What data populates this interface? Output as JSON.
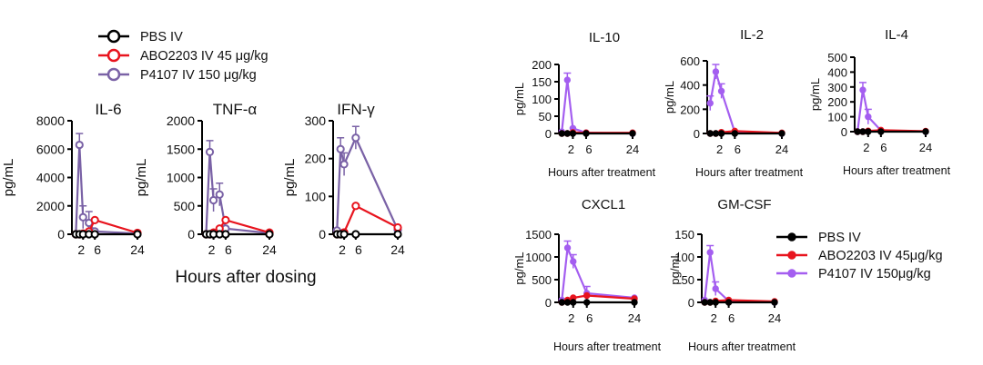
{
  "colors": {
    "pbs": "#000000",
    "abo": "#e8141e",
    "p4107": "#7a62a6",
    "p4107_b": "#a45ef0"
  },
  "figure_a": {
    "legend": [
      {
        "label": "PBS IV",
        "color": "pbs"
      },
      {
        "label": "ABO2203 IV 45 μg/kg",
        "color": "abo"
      },
      {
        "label": "P4107 IV 150 μg/kg",
        "color": "p4107"
      }
    ],
    "xlabel": "Hours after dosing"
  },
  "figure_b": {
    "legend": [
      {
        "label": "PBS IV",
        "color": "pbs"
      },
      {
        "label": "ABO2203 IV 45μg/kg",
        "color": "abo"
      },
      {
        "label": "P4107 IV 150μg/kg",
        "color": "p4107_b"
      }
    ]
  },
  "chart_data": [
    {
      "type": "line",
      "title": "IL-6",
      "ylabel": "pg/mL",
      "xlabel": "",
      "ylim": [
        0,
        8000
      ],
      "yticks": [
        "0",
        "2000",
        "4000",
        "6000",
        "8000"
      ],
      "xticks": [
        "2",
        "6",
        "24"
      ],
      "x": [
        0,
        1,
        2,
        4,
        6,
        24
      ],
      "series": [
        {
          "name": "PBS IV",
          "values": [
            0,
            0,
            0,
            0,
            0,
            0
          ]
        },
        {
          "name": "ABO2203 IV 45 μg/kg",
          "values": [
            0,
            0,
            50,
            200,
            1000,
            100
          ]
        },
        {
          "name": "P4107 IV 150 μg/kg",
          "values": [
            0,
            6300,
            1200,
            800,
            200,
            50
          ]
        }
      ]
    },
    {
      "type": "line",
      "title": "TNF-α",
      "ylabel": "pg/mL",
      "xlabel": "",
      "ylim": [
        0,
        2000
      ],
      "yticks": [
        "0",
        "500",
        "1000",
        "1500",
        "2000"
      ],
      "xticks": [
        "2",
        "6",
        "24"
      ],
      "x": [
        0,
        1,
        2,
        4,
        6,
        24
      ],
      "series": [
        {
          "name": "PBS IV",
          "values": [
            0,
            0,
            0,
            0,
            0,
            0
          ]
        },
        {
          "name": "ABO2203 IV 45 μg/kg",
          "values": [
            0,
            0,
            30,
            100,
            250,
            30
          ]
        },
        {
          "name": "P4107 IV 150 μg/kg",
          "values": [
            0,
            1450,
            600,
            700,
            100,
            20
          ]
        }
      ]
    },
    {
      "type": "line",
      "title": "IFN-γ",
      "ylabel": "pg/mL",
      "xlabel": "",
      "ylim": [
        0,
        300
      ],
      "yticks": [
        "0",
        "100",
        "200",
        "300"
      ],
      "xticks": [
        "2",
        "6",
        "24"
      ],
      "x": [
        0,
        1,
        2,
        6,
        24
      ],
      "series": [
        {
          "name": "PBS IV",
          "values": [
            0,
            0,
            0,
            0,
            0
          ]
        },
        {
          "name": "ABO2203 IV 45 μg/kg",
          "values": [
            0,
            0,
            5,
            75,
            18
          ]
        },
        {
          "name": "P4107 IV 150 μg/kg",
          "values": [
            10,
            225,
            185,
            255,
            12
          ]
        }
      ]
    },
    {
      "type": "line",
      "title": "IL-10",
      "ylabel": "pg/mL",
      "xlabel": "Hours after treatment",
      "ylim": [
        0,
        200
      ],
      "yticks": [
        "0",
        "50",
        "100",
        "150",
        "200"
      ],
      "xticks": [
        "2",
        "6",
        "24"
      ],
      "x": [
        0,
        1,
        2,
        6,
        24
      ],
      "series": [
        {
          "name": "PBS IV",
          "values": [
            0,
            0,
            0,
            0,
            0
          ]
        },
        {
          "name": "ABO2203 IV 45μg/kg",
          "values": [
            0,
            0,
            3,
            2,
            2
          ]
        },
        {
          "name": "P4107 IV 150μg/kg",
          "values": [
            5,
            155,
            15,
            2,
            0
          ]
        }
      ]
    },
    {
      "type": "line",
      "title": "IL-2",
      "ylabel": "pg/mL",
      "xlabel": "Hours after treatment",
      "ylim": [
        0,
        600
      ],
      "yticks": [
        "0",
        "200",
        "400",
        "600"
      ],
      "xticks": [
        "2",
        "6",
        "24"
      ],
      "x": [
        0,
        1,
        2,
        6,
        24
      ],
      "series": [
        {
          "name": "PBS IV",
          "values": [
            0,
            0,
            0,
            0,
            0
          ]
        },
        {
          "name": "ABO2203 IV 45μg/kg",
          "values": [
            0,
            0,
            10,
            20,
            5
          ]
        },
        {
          "name": "P4107 IV 150μg/kg",
          "values": [
            250,
            510,
            350,
            10,
            0
          ]
        }
      ]
    },
    {
      "type": "line",
      "title": "IL-4",
      "ylabel": "pg/mL",
      "xlabel": "Hours after treatment",
      "ylim": [
        0,
        500
      ],
      "yticks": [
        "0",
        "100",
        "200",
        "300",
        "400",
        "500"
      ],
      "xticks": [
        "2",
        "6",
        "24"
      ],
      "x": [
        0,
        1,
        2,
        6,
        24
      ],
      "series": [
        {
          "name": "PBS IV",
          "values": [
            0,
            0,
            0,
            0,
            0
          ]
        },
        {
          "name": "ABO2203 IV 45μg/kg",
          "values": [
            0,
            0,
            5,
            10,
            3
          ]
        },
        {
          "name": "P4107 IV 150μg/kg",
          "values": [
            0,
            280,
            100,
            8,
            0
          ]
        }
      ]
    },
    {
      "type": "line",
      "title": "CXCL1",
      "ylabel": "pg/mL",
      "xlabel": "Hours after treatment",
      "ylim": [
        0,
        1500
      ],
      "yticks": [
        "0",
        "500",
        "1000",
        "1500"
      ],
      "xticks": [
        "2",
        "6",
        "24"
      ],
      "x": [
        0,
        1,
        2,
        6,
        24
      ],
      "series": [
        {
          "name": "PBS IV",
          "values": [
            0,
            0,
            0,
            0,
            0
          ]
        },
        {
          "name": "ABO2203 IV 45μg/kg",
          "values": [
            0,
            50,
            100,
            150,
            80
          ]
        },
        {
          "name": "P4107 IV 150μg/kg",
          "values": [
            50,
            1200,
            900,
            200,
            100
          ]
        }
      ]
    },
    {
      "type": "line",
      "title": "GM-CSF",
      "ylabel": "pg/mL",
      "xlabel": "Hours after treatment",
      "ylim": [
        0,
        150
      ],
      "yticks": [
        "0",
        "50",
        "100",
        "150"
      ],
      "xticks": [
        "2",
        "6",
        "24"
      ],
      "x": [
        0,
        1,
        2,
        6,
        24
      ],
      "series": [
        {
          "name": "PBS IV",
          "values": [
            0,
            0,
            0,
            0,
            0
          ]
        },
        {
          "name": "ABO2203 IV 45μg/kg",
          "values": [
            0,
            0,
            3,
            5,
            2
          ]
        },
        {
          "name": "P4107 IV 150μg/kg",
          "values": [
            5,
            110,
            30,
            3,
            0
          ]
        }
      ]
    }
  ]
}
